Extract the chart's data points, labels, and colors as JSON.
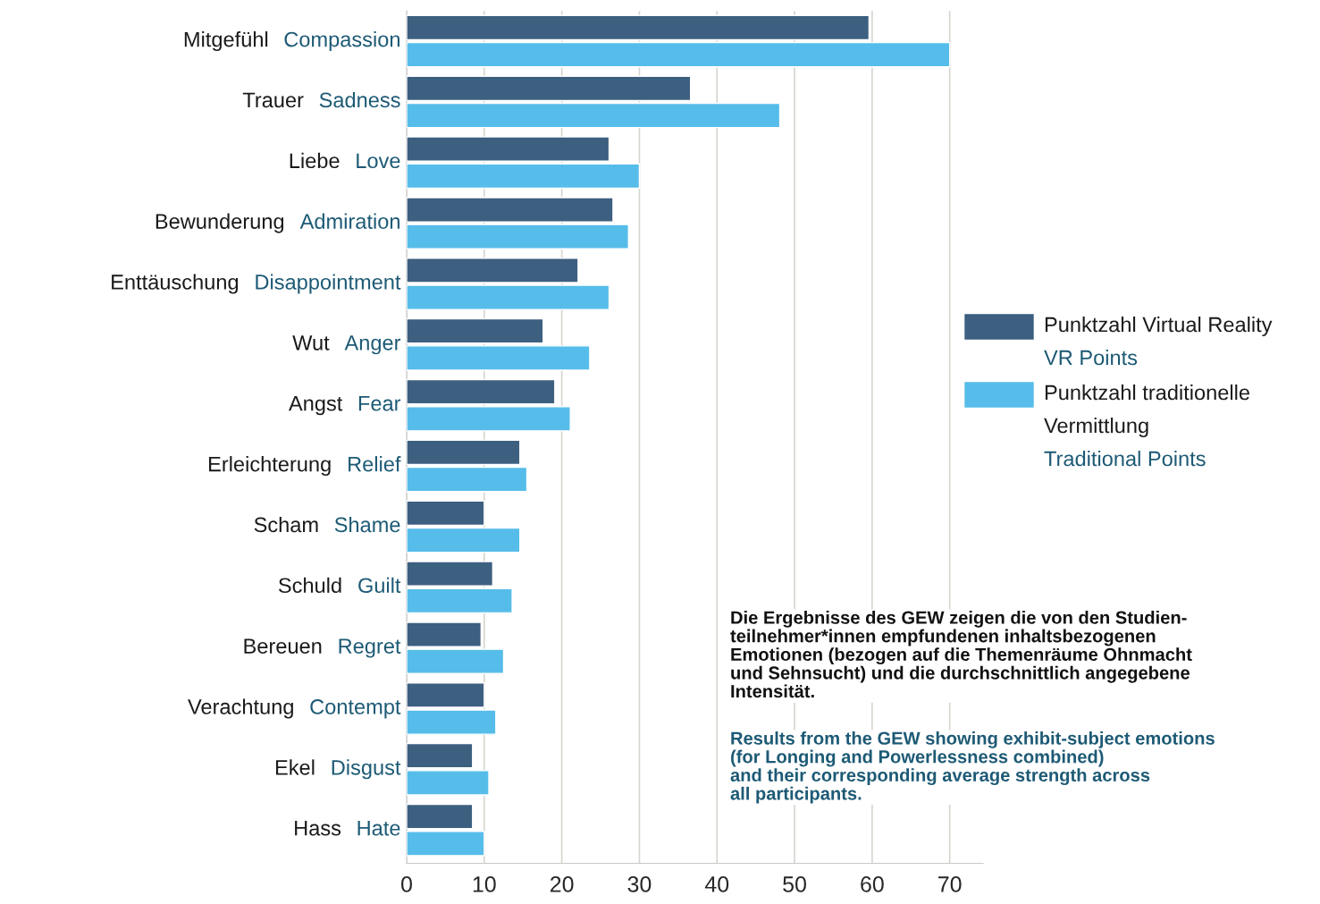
{
  "chart_data": {
    "type": "bar",
    "orientation": "horizontal",
    "categories": [
      "Mitgefühl  Compassion",
      "Trauer  Sadness",
      "Liebe  Love",
      "Bewunderung  Admiration",
      "Enttäuschung  Disappointment",
      "Wut  Anger",
      "Angst  Fear",
      "Erleichterung  Relief",
      "Scham  Shame",
      "Schuld  Guilt",
      "Bereuen  Regret",
      "Verachtung  Contempt",
      "Ekel  Disgust",
      "Hass  Hate"
    ],
    "series": [
      {
        "name": "Punktzahl Virtual Reality\nVR Points",
        "color": "#3d5f80",
        "values": [
          59.6,
          36.6,
          26.1,
          26.6,
          22.1,
          17.6,
          19.1,
          14.6,
          10.0,
          11.1,
          9.6,
          10.0,
          8.5,
          8.5
        ]
      },
      {
        "name": "Punktzahl traditionelle\nVermittlung\nTraditional Points",
        "color": "#56bdea",
        "values": [
          70.0,
          48.1,
          30.0,
          28.6,
          26.1,
          23.6,
          21.1,
          15.5,
          14.6,
          13.6,
          12.5,
          11.5,
          10.6,
          10.0
        ]
      }
    ],
    "xlim": [
      0,
      74.3
    ],
    "xticks": [
      0,
      10,
      20,
      30,
      40,
      50,
      60,
      70
    ],
    "grid": "x",
    "legend": "right",
    "annotations": [
      "Die Ergebnisse des GEW zeigen die von den Studien-\nteilnehmer*innen empfundenen inhaltsbezogenen\nEmotionen (bezogen auf die Themenräume Ohnmacht\nund Sehnsucht) und die durchschnittlich angegebene\nIntensität.",
      "Results from the GEW showing exhibit-subject emotions\n(for Longing and Powerlessness combined)\nand their corresponding average strength across\nall participants."
    ]
  }
}
